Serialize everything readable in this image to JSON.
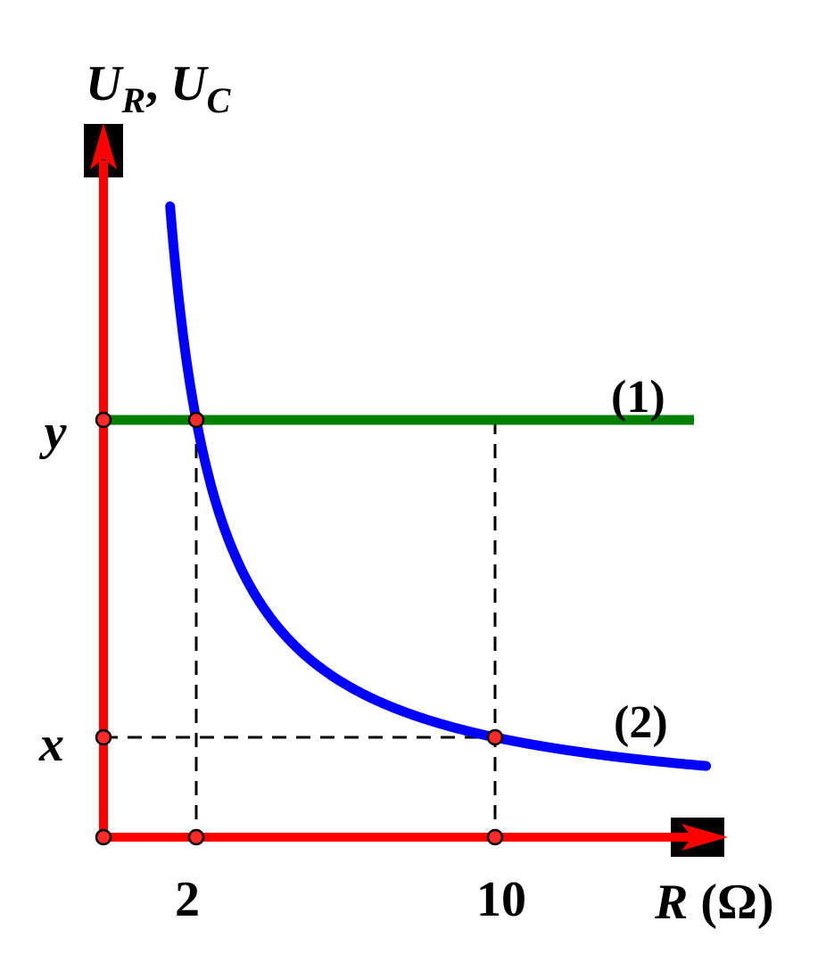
{
  "chart_data": {
    "type": "line",
    "title": "",
    "ylabel_main": "U",
    "ylabel_sub_r": "R",
    "ylabel_sep": ", ",
    "ylabel_main_2": "U",
    "ylabel_sub_c": "C",
    "xlabel_symbol": "R",
    "xlabel_unit": " (Ω)",
    "x_ticks": [
      {
        "value": 2,
        "label": "2"
      },
      {
        "value": 10,
        "label": "10"
      }
    ],
    "y_ticks": [
      {
        "key": "y",
        "label": "y"
      },
      {
        "key": "x",
        "label": "x"
      }
    ],
    "series": [
      {
        "name": "(1)",
        "kind": "constant",
        "level": "y",
        "color": "#008000"
      },
      {
        "name": "(2)",
        "kind": "inverse",
        "color": "#0000ff",
        "points_at": [
          2,
          10
        ]
      }
    ],
    "annotations": [
      {
        "at_x": 2,
        "on": "(1)"
      },
      {
        "at_x": 10,
        "on": "(2)",
        "level": "x"
      }
    ],
    "axis_color": "#ff0000",
    "guide_color": "#000000"
  }
}
